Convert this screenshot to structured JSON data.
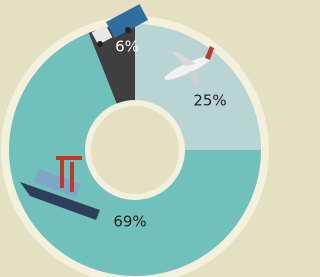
{
  "chart_data": {
    "type": "donut",
    "values": [
      6,
      25,
      69
    ],
    "value_labels": [
      "6%",
      "25%",
      "69%"
    ],
    "colors": [
      "#3f3f3f",
      "#b9d5d3",
      "#70c0bc"
    ]
  }
}
